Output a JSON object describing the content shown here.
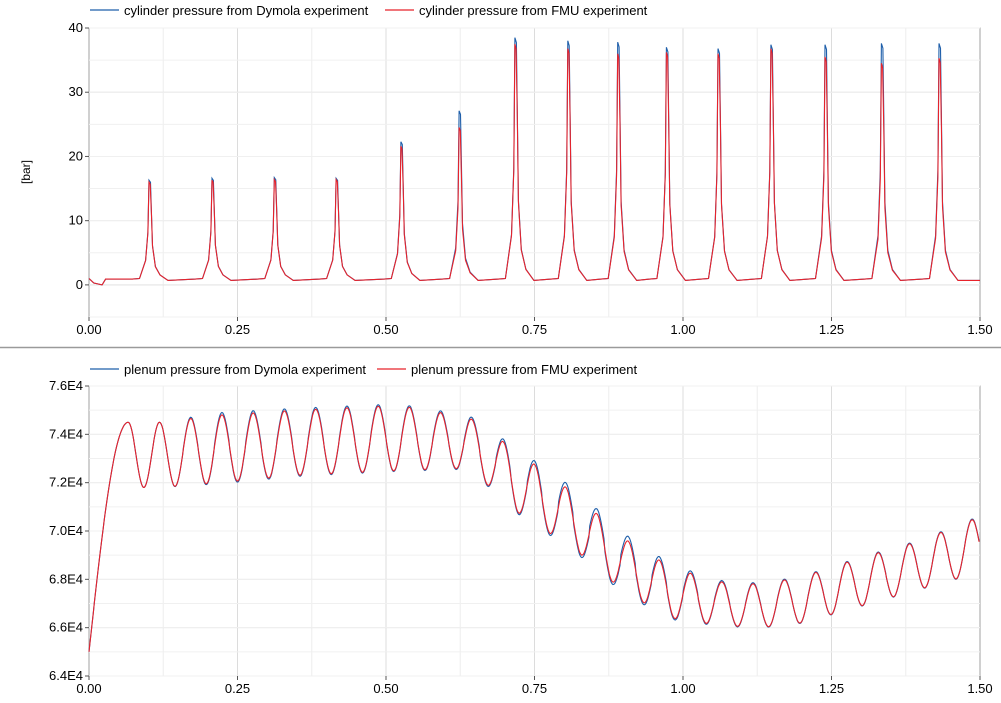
{
  "chart_data": [
    {
      "type": "line",
      "title": "",
      "xlabel": "",
      "ylabel": "[bar]",
      "xlim": [
        0,
        1.5
      ],
      "ylim": [
        -5,
        40
      ],
      "x_ticks": [
        "0.00",
        "0.25",
        "0.50",
        "0.75",
        "1.00",
        "1.25",
        "1.50"
      ],
      "y_ticks": [
        "0",
        "10",
        "20",
        "30",
        "40"
      ],
      "grid": true,
      "legend_position": "top",
      "series": [
        {
          "name": "cylinder pressure from Dymola experiment",
          "color": "#1f5faa"
        },
        {
          "name": "cylinder pressure from FMU experiment",
          "color": "#e8232b"
        }
      ],
      "baseline_bar": 0.9,
      "peaks": [
        {
          "t": 0.103,
          "dymola": 16.3,
          "fmu": 16.0
        },
        {
          "t": 0.209,
          "dymola": 16.6,
          "fmu": 16.3
        },
        {
          "t": 0.314,
          "dymola": 16.7,
          "fmu": 16.4
        },
        {
          "t": 0.418,
          "dymola": 16.6,
          "fmu": 16.4
        },
        {
          "t": 0.527,
          "dymola": 22.3,
          "fmu": 21.6
        },
        {
          "t": 0.625,
          "dymola": 27.1,
          "fmu": 24.5
        },
        {
          "t": 0.719,
          "dymola": 38.5,
          "fmu": 37.5
        },
        {
          "t": 0.808,
          "dymola": 38.0,
          "fmu": 36.8
        },
        {
          "t": 0.892,
          "dymola": 37.8,
          "fmu": 36.0
        },
        {
          "t": 0.974,
          "dymola": 37.0,
          "fmu": 36.2
        },
        {
          "t": 1.061,
          "dymola": 36.8,
          "fmu": 36.0
        },
        {
          "t": 1.15,
          "dymola": 37.4,
          "fmu": 36.8
        },
        {
          "t": 1.241,
          "dymola": 37.4,
          "fmu": 35.5
        },
        {
          "t": 1.336,
          "dymola": 37.6,
          "fmu": 34.5
        },
        {
          "t": 1.433,
          "dymola": 37.6,
          "fmu": 35.3
        }
      ]
    },
    {
      "type": "line",
      "title": "",
      "xlabel": "",
      "ylabel": "",
      "xlim": [
        0,
        1.5
      ],
      "ylim": [
        64000,
        76000
      ],
      "x_ticks": [
        "0.00",
        "0.25",
        "0.50",
        "0.75",
        "1.00",
        "1.25",
        "1.50"
      ],
      "y_ticks": [
        "6.4E4",
        "6.6E4",
        "6.8E4",
        "7.0E4",
        "7.2E4",
        "7.4E4",
        "7.6E4"
      ],
      "grid": true,
      "legend_position": "top",
      "series": [
        {
          "name": "plenum pressure from Dymola experiment",
          "color": "#1f5faa"
        },
        {
          "name": "plenum pressure from FMU experiment",
          "color": "#e8232b"
        }
      ],
      "envelope": [
        {
          "t": 0.0,
          "upper": 65000,
          "lower": 65000,
          "dymola_offset": 0
        },
        {
          "t": 0.066,
          "upper": 74500,
          "lower": 71800,
          "dymola_offset": 0
        },
        {
          "t": 0.12,
          "upper": 74500,
          "lower": 71800,
          "dymola_offset": 0
        },
        {
          "t": 0.22,
          "upper": 74800,
          "lower": 72000,
          "dymola_offset": 100
        },
        {
          "t": 0.35,
          "upper": 75000,
          "lower": 72300,
          "dymola_offset": 80
        },
        {
          "t": 0.52,
          "upper": 75200,
          "lower": 72500,
          "dymola_offset": 60
        },
        {
          "t": 0.64,
          "upper": 74700,
          "lower": 72600,
          "dymola_offset": 80
        },
        {
          "t": 0.72,
          "upper": 73300,
          "lower": 70800,
          "dymola_offset": 120
        },
        {
          "t": 0.82,
          "upper": 71500,
          "lower": 69200,
          "dymola_offset": 200
        },
        {
          "t": 0.9,
          "upper": 69700,
          "lower": 67500,
          "dymola_offset": 200
        },
        {
          "t": 0.98,
          "upper": 68500,
          "lower": 66400,
          "dymola_offset": 120
        },
        {
          "t": 1.06,
          "upper": 67900,
          "lower": 66100,
          "dymola_offset": 60
        },
        {
          "t": 1.13,
          "upper": 67800,
          "lower": 66000,
          "dymola_offset": 40
        },
        {
          "t": 1.2,
          "upper": 68100,
          "lower": 66200,
          "dymola_offset": 30
        },
        {
          "t": 1.3,
          "upper": 68900,
          "lower": 66900,
          "dymola_offset": 30
        },
        {
          "t": 1.4,
          "upper": 69600,
          "lower": 67600,
          "dymola_offset": 30
        },
        {
          "t": 1.5,
          "upper": 70600,
          "lower": 68300,
          "dymola_offset": 30
        }
      ]
    }
  ]
}
